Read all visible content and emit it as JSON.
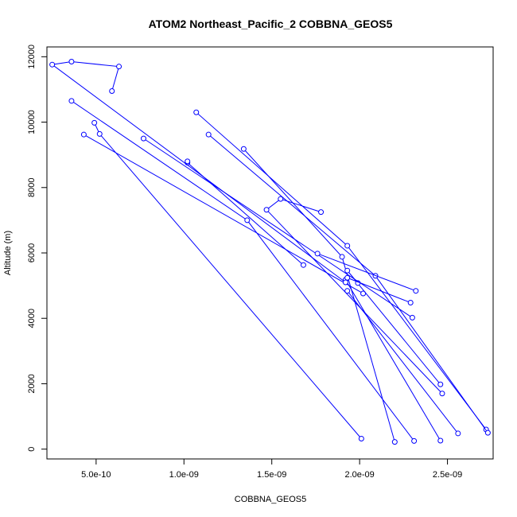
{
  "chart_data": {
    "type": "line",
    "title": "ATOM2 Northeast_Pacific_2 COBBNA_GEOS5",
    "xlabel": "COBBNA_GEOS5",
    "ylabel": "Altitude (m)",
    "xlim": [
      2.2e-10,
      2.76e-09
    ],
    "ylim": [
      -300,
      12300
    ],
    "x_ticks": [
      5e-10,
      1e-09,
      1.5e-09,
      2e-09,
      2.5e-09
    ],
    "x_tick_labels": [
      "5.0e-10",
      "1.0e-09",
      "1.5e-09",
      "2.0e-09",
      "2.5e-09"
    ],
    "y_ticks": [
      0,
      2000,
      4000,
      6000,
      8000,
      10000,
      12000
    ],
    "y_tick_labels": [
      "0",
      "2000",
      "4000",
      "6000",
      "8000",
      "10000",
      "12000"
    ],
    "grid": false,
    "series_color": "#0000ff",
    "series": [
      {
        "x": [
          2.31e-09,
          1.36e-09,
          3.6e-10
        ],
        "y": [
          250,
          7000,
          10650
        ]
      },
      {
        "x": [
          2.01e-09,
          5.2e-10,
          4.9e-10
        ],
        "y": [
          320,
          9640,
          9980
        ]
      },
      {
        "x": [
          1.68e-09,
          1.02e-09,
          1.02e-09
        ],
        "y": [
          5630,
          8760,
          8800
        ]
      },
      {
        "x": [
          2.02e-09,
          4.3e-10
        ],
        "y": [
          4760,
          9620
        ]
      },
      {
        "x": [
          2.2e-09,
          1.9e-09,
          1.34e-09
        ],
        "y": [
          220,
          5880,
          9180
        ]
      },
      {
        "x": [
          2.72e-09,
          1.93e-09,
          1.07e-09
        ],
        "y": [
          600,
          6220,
          10300
        ]
      },
      {
        "x": [
          2.73e-09,
          2.09e-09,
          1.14e-09
        ],
        "y": [
          500,
          5300,
          9620
        ]
      },
      {
        "x": [
          2.46e-09,
          1.92e-09
        ],
        "y": [
          260,
          5180
        ]
      },
      {
        "x": [
          2.56e-09,
          1.93e-09
        ],
        "y": [
          480,
          4840
        ]
      },
      {
        "x": [
          2.47e-09,
          1.47e-09,
          1.55e-09,
          1.78e-09
        ],
        "y": [
          1700,
          7320,
          7650,
          7250
        ]
      },
      {
        "x": [
          2.46e-09,
          1.93e-09,
          1.99e-09
        ],
        "y": [
          1980,
          5460,
          5080
        ]
      },
      {
        "x": [
          2.3e-09,
          7.7e-10
        ],
        "y": [
          4020,
          9500
        ]
      },
      {
        "x": [
          2.29e-09,
          1.93e-09
        ],
        "y": [
          4480,
          5240
        ]
      },
      {
        "x": [
          2.32e-09,
          1.76e-09
        ],
        "y": [
          4840,
          5980
        ]
      },
      {
        "x": [
          1.92e-09,
          2.5e-10,
          3.6e-10,
          6.3e-10,
          5.9e-10
        ],
        "y": [
          5100,
          11760,
          11850,
          11700,
          10950
        ]
      }
    ]
  }
}
